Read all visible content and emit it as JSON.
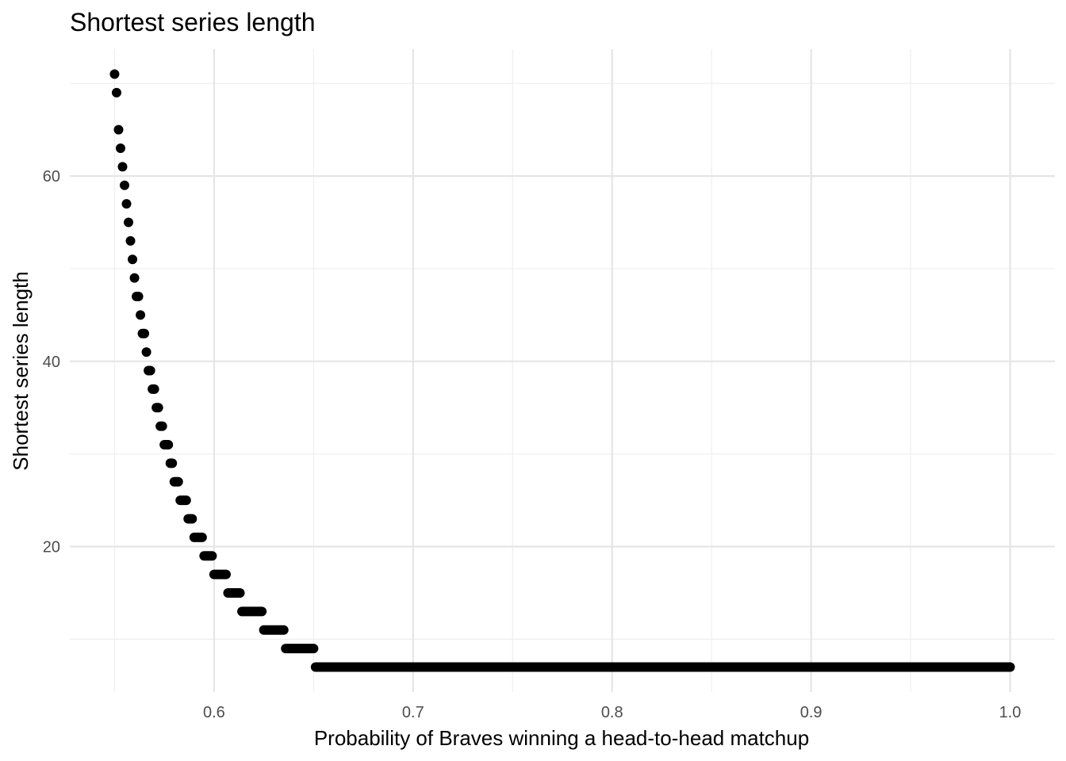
{
  "chart_data": {
    "type": "scatter",
    "title": "Shortest series length",
    "xlabel": "Probability of Braves winning a head-to-head matchup",
    "ylabel": "Shortest series length",
    "xlim": [
      0.5275,
      1.0225
    ],
    "ylim": [
      4.3,
      73.7
    ],
    "x_ticks": [
      0.6,
      0.7,
      0.8,
      0.9,
      1.0
    ],
    "x_tick_labels": [
      "0.6",
      "0.7",
      "0.8",
      "0.9",
      "1.0"
    ],
    "y_ticks": [
      20,
      40,
      60
    ],
    "y_tick_labels": [
      "20",
      "40",
      "60"
    ],
    "grid": true,
    "legend": "none",
    "point_color": "#000000",
    "segments": [
      {
        "y": 71,
        "x_start": 0.55,
        "x_end": 0.55
      },
      {
        "y": 69,
        "x_start": 0.551,
        "x_end": 0.551
      },
      {
        "y": 65,
        "x_start": 0.552,
        "x_end": 0.552
      },
      {
        "y": 63,
        "x_start": 0.553,
        "x_end": 0.553
      },
      {
        "y": 61,
        "x_start": 0.554,
        "x_end": 0.554
      },
      {
        "y": 59,
        "x_start": 0.555,
        "x_end": 0.555
      },
      {
        "y": 57,
        "x_start": 0.556,
        "x_end": 0.556
      },
      {
        "y": 55,
        "x_start": 0.557,
        "x_end": 0.557
      },
      {
        "y": 53,
        "x_start": 0.558,
        "x_end": 0.558
      },
      {
        "y": 51,
        "x_start": 0.559,
        "x_end": 0.559
      },
      {
        "y": 49,
        "x_start": 0.56,
        "x_end": 0.56
      },
      {
        "y": 47,
        "x_start": 0.561,
        "x_end": 0.562
      },
      {
        "y": 45,
        "x_start": 0.563,
        "x_end": 0.563
      },
      {
        "y": 43,
        "x_start": 0.564,
        "x_end": 0.565
      },
      {
        "y": 41,
        "x_start": 0.566,
        "x_end": 0.566
      },
      {
        "y": 39,
        "x_start": 0.567,
        "x_end": 0.568
      },
      {
        "y": 37,
        "x_start": 0.569,
        "x_end": 0.57
      },
      {
        "y": 35,
        "x_start": 0.571,
        "x_end": 0.572
      },
      {
        "y": 33,
        "x_start": 0.573,
        "x_end": 0.574
      },
      {
        "y": 31,
        "x_start": 0.575,
        "x_end": 0.577
      },
      {
        "y": 29,
        "x_start": 0.578,
        "x_end": 0.579
      },
      {
        "y": 27,
        "x_start": 0.58,
        "x_end": 0.582
      },
      {
        "y": 25,
        "x_start": 0.583,
        "x_end": 0.586
      },
      {
        "y": 23,
        "x_start": 0.587,
        "x_end": 0.589
      },
      {
        "y": 21,
        "x_start": 0.59,
        "x_end": 0.594
      },
      {
        "y": 19,
        "x_start": 0.595,
        "x_end": 0.599
      },
      {
        "y": 17,
        "x_start": 0.6,
        "x_end": 0.606
      },
      {
        "y": 15,
        "x_start": 0.607,
        "x_end": 0.613
      },
      {
        "y": 13,
        "x_start": 0.614,
        "x_end": 0.624
      },
      {
        "y": 11,
        "x_start": 0.625,
        "x_end": 0.635
      },
      {
        "y": 9,
        "x_start": 0.636,
        "x_end": 0.65
      },
      {
        "y": 7,
        "x_start": 0.651,
        "x_end": 1.0
      }
    ]
  }
}
